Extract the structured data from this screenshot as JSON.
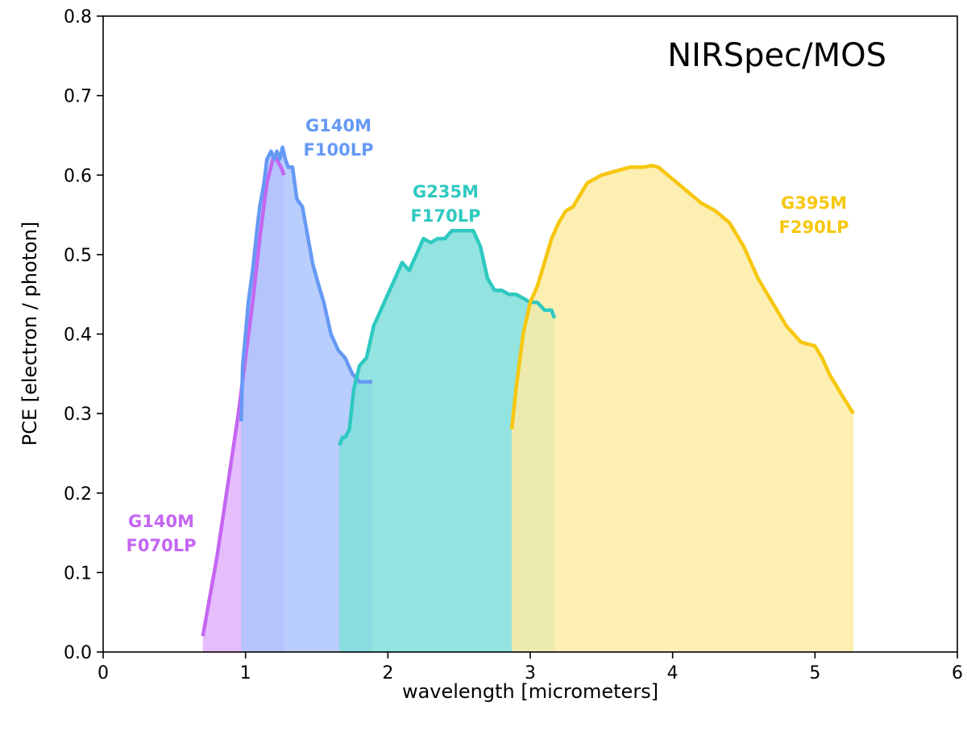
{
  "chart_data": {
    "type": "area",
    "title": "NIRSpec/MOS",
    "xlabel": "wavelength [micrometers]",
    "ylabel": "PCE [electron / photon]",
    "xlim": [
      0,
      6
    ],
    "ylim": [
      0,
      0.8
    ],
    "xticks": [
      0,
      1,
      2,
      3,
      4,
      5,
      6
    ],
    "yticks": [
      0.0,
      0.1,
      0.2,
      0.3,
      0.4,
      0.5,
      0.6,
      0.7,
      0.8
    ],
    "xtick_labels": [
      "0",
      "1",
      "2",
      "3",
      "4",
      "5",
      "6"
    ],
    "ytick_labels": [
      "0.0",
      "0.1",
      "0.2",
      "0.3",
      "0.4",
      "0.5",
      "0.6",
      "0.7",
      "0.8"
    ],
    "grid": false,
    "series": [
      {
        "name": "G140M F070LP",
        "label_lines": [
          "G140M",
          "F070LP"
        ],
        "line_color": "#c466f2",
        "fill_color": "#e0b0fb",
        "x": [
          0.7,
          0.75,
          0.8,
          0.85,
          0.9,
          0.95,
          1.0,
          1.05,
          1.1,
          1.15,
          1.2,
          1.25,
          1.27
        ],
        "y": [
          0.02,
          0.07,
          0.12,
          0.18,
          0.24,
          0.3,
          0.37,
          0.44,
          0.52,
          0.59,
          0.625,
          0.61,
          0.6
        ]
      },
      {
        "name": "G140M F100LP",
        "label_lines": [
          "G140M",
          "F100LP"
        ],
        "line_color": "#6699f5",
        "fill_color": "#adc6fb",
        "x": [
          0.97,
          0.98,
          1.0,
          1.02,
          1.05,
          1.08,
          1.1,
          1.13,
          1.15,
          1.18,
          1.2,
          1.22,
          1.24,
          1.26,
          1.28,
          1.3,
          1.33,
          1.36,
          1.4,
          1.44,
          1.47,
          1.5,
          1.55,
          1.6,
          1.65,
          1.7,
          1.75,
          1.8,
          1.85,
          1.89
        ],
        "y": [
          0.29,
          0.36,
          0.4,
          0.44,
          0.48,
          0.53,
          0.56,
          0.59,
          0.62,
          0.63,
          0.62,
          0.63,
          0.62,
          0.635,
          0.62,
          0.61,
          0.61,
          0.57,
          0.56,
          0.52,
          0.49,
          0.47,
          0.44,
          0.4,
          0.38,
          0.37,
          0.35,
          0.34,
          0.34,
          0.34
        ]
      },
      {
        "name": "G235M F170LP",
        "label_lines": [
          "G235M",
          "F170LP"
        ],
        "line_color": "#2ec9c1",
        "fill_color": "#80dedb",
        "x": [
          1.66,
          1.68,
          1.7,
          1.73,
          1.76,
          1.8,
          1.85,
          1.9,
          1.95,
          2.0,
          2.05,
          2.1,
          2.15,
          2.2,
          2.25,
          2.3,
          2.35,
          2.4,
          2.45,
          2.5,
          2.55,
          2.6,
          2.65,
          2.7,
          2.75,
          2.8,
          2.85,
          2.9,
          2.95,
          3.0,
          3.05,
          3.1,
          3.15,
          3.17
        ],
        "y": [
          0.26,
          0.27,
          0.27,
          0.28,
          0.33,
          0.36,
          0.37,
          0.41,
          0.43,
          0.45,
          0.47,
          0.49,
          0.48,
          0.5,
          0.52,
          0.515,
          0.52,
          0.52,
          0.53,
          0.53,
          0.53,
          0.53,
          0.51,
          0.47,
          0.455,
          0.455,
          0.45,
          0.45,
          0.445,
          0.44,
          0.44,
          0.43,
          0.43,
          0.42
        ]
      },
      {
        "name": "G395M F290LP",
        "label_lines": [
          "G395M",
          "F290LP"
        ],
        "line_color": "#f7c70f",
        "fill_color": "#fdeba5",
        "x": [
          2.87,
          2.9,
          2.95,
          3.0,
          3.05,
          3.1,
          3.15,
          3.2,
          3.25,
          3.3,
          3.4,
          3.5,
          3.6,
          3.7,
          3.8,
          3.85,
          3.9,
          4.0,
          4.1,
          4.2,
          4.3,
          4.4,
          4.5,
          4.6,
          4.7,
          4.8,
          4.9,
          5.0,
          5.05,
          5.1,
          5.2,
          5.27
        ],
        "y": [
          0.28,
          0.33,
          0.4,
          0.44,
          0.46,
          0.49,
          0.52,
          0.54,
          0.555,
          0.56,
          0.59,
          0.6,
          0.605,
          0.61,
          0.61,
          0.612,
          0.61,
          0.595,
          0.58,
          0.565,
          0.555,
          0.54,
          0.51,
          0.47,
          0.44,
          0.41,
          0.39,
          0.385,
          0.37,
          0.35,
          0.32,
          0.3
        ]
      }
    ]
  }
}
